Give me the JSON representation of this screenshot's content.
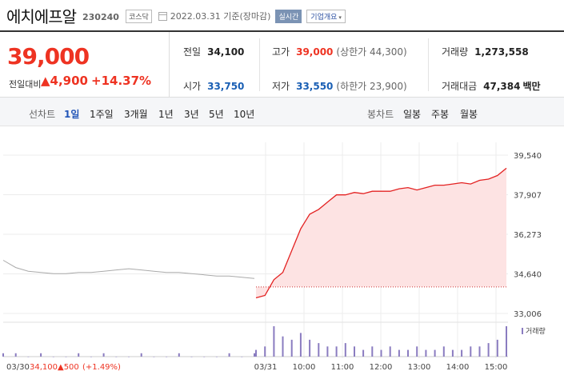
{
  "header": {
    "name": "에치에프알",
    "code": "230240",
    "market": "코스닥",
    "date": "2022.03.31 기준(장마감)",
    "realtime_label": "실시간",
    "overview_label": "기업개요",
    "overview_caret": "▾"
  },
  "summary": {
    "price": "39,000",
    "diff_label": "전일대비",
    "diff_value": "▲4,900",
    "diff_rate": "+14.37%",
    "stats": {
      "prev_label": "전일",
      "prev_value": "34,100",
      "high_label": "고가",
      "high_value": "39,000",
      "high_sub": "(상한가 44,300)",
      "volume_label": "거래량",
      "volume_value": "1,273,558",
      "open_label": "시가",
      "open_value": "33,750",
      "low_label": "저가",
      "low_value": "33,550",
      "low_sub": "(하한가 23,900)",
      "amount_label": "거래대금",
      "amount_value": "47,384",
      "amount_unit": "백만"
    }
  },
  "tabs": {
    "line_chart_label": "선차트",
    "periods": [
      "1일",
      "1주일",
      "3개월",
      "1년",
      "3년",
      "5년",
      "10년"
    ],
    "candle_chart_label": "봉차트",
    "candles": [
      "일봉",
      "주봉",
      "월봉"
    ]
  },
  "colors": {
    "up": "#e32222",
    "down": "#1a5fb4",
    "prev_line": "#aaaaaa",
    "fill": "#fde3e3",
    "volume": "#8a7cc0"
  },
  "chart_data": {
    "type": "line",
    "y_ticks": [
      "39,540",
      "37,907",
      "36,273",
      "34,640",
      "33,006"
    ],
    "y_range": [
      33006,
      39540
    ],
    "x_ticks": [
      "03/30",
      "03/31",
      "10:00",
      "11:00",
      "12:00",
      "13:00",
      "14:00",
      "15:00"
    ],
    "prev_close": 34100,
    "series": [
      {
        "values": [
          35200,
          34900,
          34750,
          34700,
          34650,
          34650,
          34700,
          34700,
          34750,
          34800,
          34850,
          34800,
          34750,
          34700,
          34700,
          34650,
          34600,
          34550,
          34550,
          34500,
          34450,
          33650,
          33750,
          34400,
          34700,
          35600,
          36500,
          37100,
          37300,
          37600,
          37900,
          37900,
          38000,
          37950,
          38050,
          38050,
          38050,
          38150,
          38200,
          38100,
          38200,
          38300,
          38300,
          38350,
          38400,
          38350,
          38500,
          38550,
          38700,
          39000
        ]
      }
    ],
    "volume_legend": "거래량",
    "volume": [
      1,
      1,
      0,
      1,
      0,
      0,
      1,
      0,
      1,
      0,
      0,
      1,
      0,
      0,
      1,
      0,
      0,
      0,
      1,
      0,
      1,
      2,
      3,
      9,
      6,
      5,
      7,
      5,
      4,
      3,
      3,
      4,
      3,
      2,
      3,
      2,
      3,
      2,
      2,
      3,
      2,
      2,
      3,
      2,
      2,
      3,
      3,
      4,
      5,
      9
    ],
    "footer_date": "03/30",
    "footer_price": "34,100",
    "footer_change": "▲500",
    "footer_rate": "(+1.49%)"
  }
}
